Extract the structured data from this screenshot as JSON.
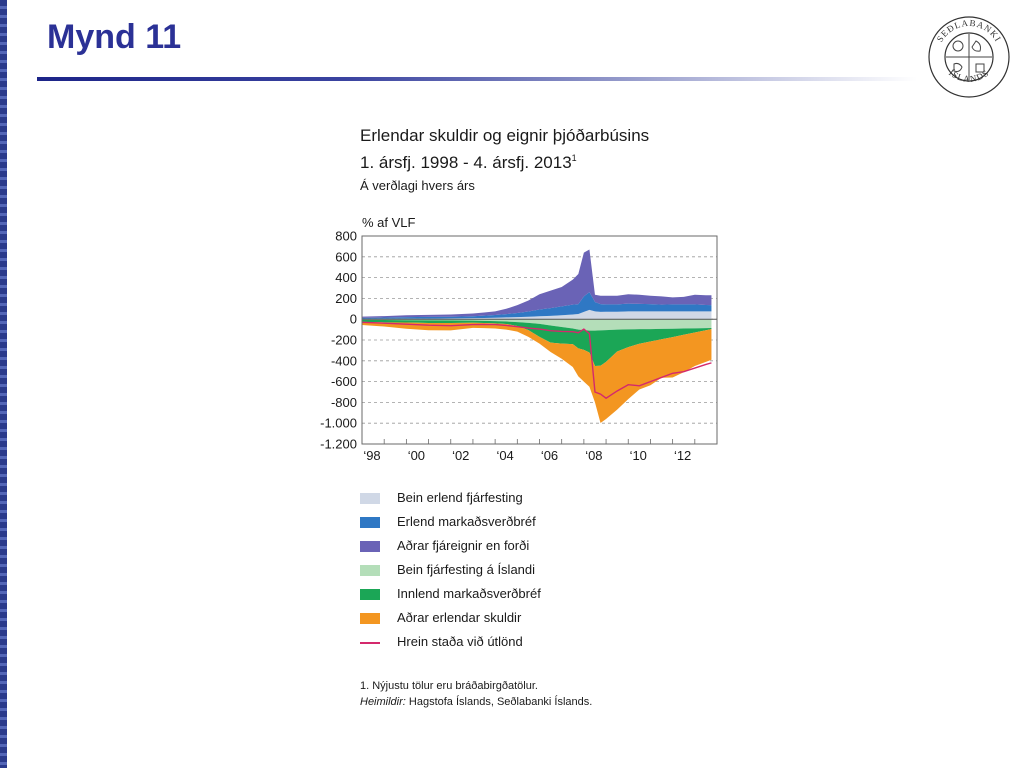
{
  "slide": {
    "title": "Mynd 11"
  },
  "logo": {
    "text_top": "SEÐLABANKI",
    "text_bottom": "ÍSLANDS"
  },
  "chart_data": {
    "type": "area",
    "title": "Erlendar skuldir og eignir þjóðarbúsins",
    "subtitle": "1. ársfj. 1998 - 4. ársfj. 2013",
    "subtitle_footnote_mark": "1",
    "note": "Á verðlagi hvers árs",
    "ylabel": "% af VLF",
    "ylim": [
      -1200,
      800
    ],
    "yticks": [
      800,
      600,
      400,
      200,
      0,
      -200,
      -400,
      -600,
      -800,
      -1000,
      -1200
    ],
    "ytick_labels": [
      "800",
      "600",
      "400",
      "200",
      "0",
      "-200",
      "-400",
      "-600",
      "-800",
      "-1.000",
      "-1.200"
    ],
    "xlim": [
      1998,
      2014
    ],
    "xtick_labels": [
      {
        "x": 1998,
        "label": "‘98"
      },
      {
        "x": 2000,
        "label": "‘00"
      },
      {
        "x": 2002,
        "label": "‘02"
      },
      {
        "x": 2004,
        "label": "‘04"
      },
      {
        "x": 2006,
        "label": "‘06"
      },
      {
        "x": 2008,
        "label": "‘08"
      },
      {
        "x": 2010,
        "label": "‘10"
      },
      {
        "x": 2012,
        "label": "‘12"
      }
    ],
    "grid": true,
    "legend_placement": "below",
    "x": [
      1998.0,
      1999.0,
      2000.0,
      2001.0,
      2002.0,
      2003.0,
      2003.5,
      2004.0,
      2004.5,
      2005.0,
      2005.5,
      2006.0,
      2006.5,
      2007.0,
      2007.5,
      2007.75,
      2008.0,
      2008.25,
      2008.5,
      2008.75,
      2009.0,
      2009.5,
      2010.0,
      2010.5,
      2011.0,
      2011.5,
      2012.0,
      2012.5,
      2013.0,
      2013.5,
      2013.75
    ],
    "series": [
      {
        "name": "Bein erlend fjárfesting",
        "color": "#d0d8e6",
        "sign": "positive",
        "values": [
          3,
          4,
          5,
          6,
          8,
          10,
          12,
          14,
          17,
          20,
          24,
          28,
          32,
          38,
          45,
          50,
          70,
          90,
          75,
          70,
          72,
          72,
          75,
          75,
          75,
          75,
          75,
          75,
          75,
          75,
          75
        ]
      },
      {
        "name": "Erlend markaðsverðbréf",
        "color": "#2f78c4",
        "sign": "positive",
        "values": [
          10,
          12,
          15,
          16,
          15,
          18,
          22,
          26,
          32,
          40,
          50,
          65,
          75,
          85,
          95,
          95,
          150,
          170,
          90,
          75,
          70,
          70,
          75,
          72,
          70,
          65,
          68,
          68,
          68,
          62,
          60
        ]
      },
      {
        "name": "Aðrar fjáreignir en forði",
        "color": "#6a63b6",
        "sign": "positive",
        "values": [
          12,
          14,
          18,
          20,
          22,
          27,
          30,
          35,
          51,
          75,
          106,
          147,
          168,
          187,
          240,
          290,
          420,
          410,
          70,
          80,
          83,
          84,
          90,
          88,
          80,
          80,
          67,
          72,
          92,
          93,
          95
        ]
      },
      {
        "name": "Bein fjárfesting á Íslandi",
        "color": "#b4deb9",
        "sign": "negative",
        "values": [
          -6,
          -8,
          -10,
          -11,
          -12,
          -14,
          -16,
          -18,
          -22,
          -28,
          -35,
          -45,
          -60,
          -75,
          -90,
          -100,
          -105,
          -110,
          -110,
          -108,
          -105,
          -100,
          -98,
          -96,
          -95,
          -93,
          -92,
          -90,
          -88,
          -86,
          -85
        ]
      },
      {
        "name": "Innlend markaðsverðbréf",
        "color": "#1ba656",
        "sign": "negative",
        "values": [
          -20,
          -22,
          -22,
          -25,
          -25,
          -20,
          -20,
          -22,
          -24,
          -37,
          -70,
          -125,
          -165,
          -160,
          -150,
          -180,
          -190,
          -210,
          -340,
          -340,
          -305,
          -210,
          -170,
          -140,
          -120,
          -100,
          -80,
          -60,
          -40,
          -20,
          -10
        ]
      },
      {
        "name": "Aðrar erlendar skuldir",
        "color": "#f39621",
        "sign": "negative",
        "values": [
          -30,
          -40,
          -60,
          -70,
          -70,
          -50,
          -50,
          -50,
          -54,
          -55,
          -65,
          -65,
          -90,
          -145,
          -220,
          -270,
          -305,
          -330,
          -350,
          -550,
          -550,
          -560,
          -500,
          -440,
          -420,
          -370,
          -388,
          -360,
          -322,
          -304,
          -295
        ]
      },
      {
        "name": "Hrein staða við útlönd",
        "color": "#d4296c",
        "sign": "line",
        "values": [
          -30,
          -38,
          -48,
          -58,
          -62,
          -52,
          -50,
          -52,
          -60,
          -72,
          -85,
          -95,
          -110,
          -118,
          -120,
          -130,
          -95,
          -140,
          -700,
          -720,
          -760,
          -690,
          -630,
          -640,
          -600,
          -560,
          -520,
          -505,
          -470,
          -435,
          -420
        ]
      }
    ]
  },
  "legend": [
    {
      "label": "Bein erlend fjárfesting",
      "color": "#d0d8e6",
      "kind": "box"
    },
    {
      "label": "Erlend markaðsverðbréf",
      "color": "#2f78c4",
      "kind": "box"
    },
    {
      "label": "Aðrar fjáreignir en forði",
      "color": "#6a63b6",
      "kind": "box"
    },
    {
      "label": "Bein fjárfesting á Íslandi",
      "color": "#b4deb9",
      "kind": "box"
    },
    {
      "label": "Innlend markaðsverðbréf",
      "color": "#1ba656",
      "kind": "box"
    },
    {
      "label": "Aðrar erlendar skuldir",
      "color": "#f39621",
      "kind": "box"
    },
    {
      "label": "Hrein staða við útlönd",
      "color": "#d4296c",
      "kind": "line"
    }
  ],
  "footnotes": {
    "note1": "1. Nýjustu tölur eru bráðabirgðatölur.",
    "source_label": "Heimildir:",
    "source_text": " Hagstofa Íslands, Seðlabanki Íslands."
  }
}
